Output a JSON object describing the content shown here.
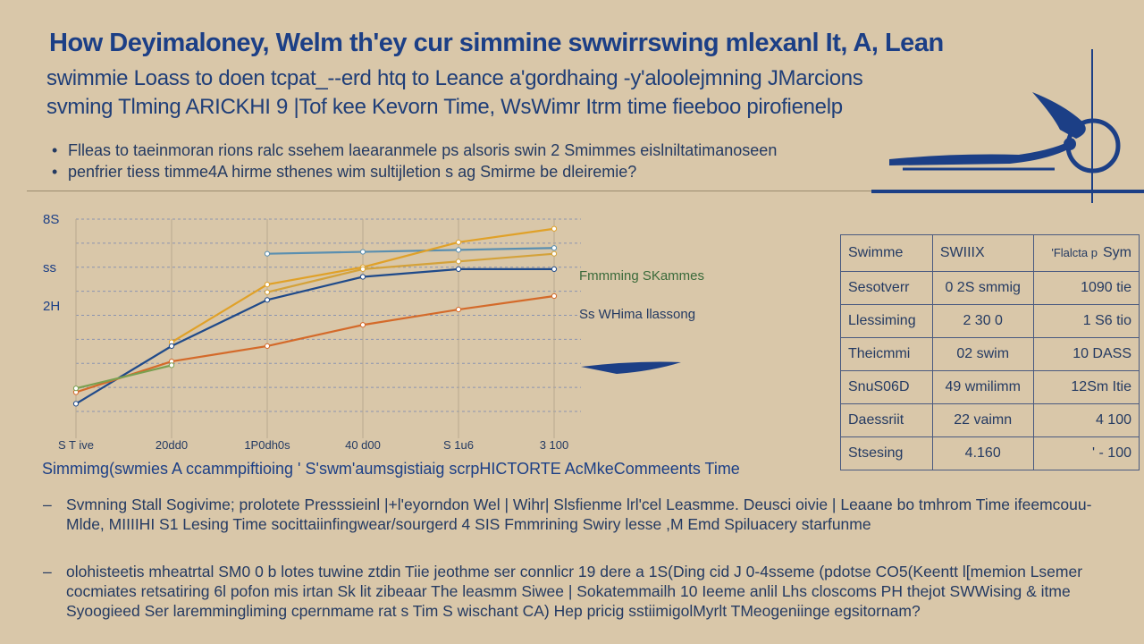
{
  "header": {
    "title": "How Deyimaloney, Welm th'ey cur simmine swwirrswing mlexanl It, A, Lean",
    "subtitle_1": "swimmie Loass to doen tcpat_--erd htq to Leance a'gordhaing -y'aloolejmning JMarcions",
    "subtitle_2": "svming Tlming ARICKHI 9 |Tof kee Kevorn Time, WsWimr Itrm time fieeboo pirofienelp"
  },
  "bullets": [
    "Flleas to taeinmoran rions ralc ssehem laearanmele ps alsoris swin 2 Smimmes eislniltatimanoseen",
    "penfrier tiess timme4A hirme sthenes wim sultijletion s ag Smirme be dleiremie?"
  ],
  "chart_data": {
    "type": "line",
    "title": "",
    "xlabel": "",
    "ylabel": "",
    "y_ticks": [
      "8S",
      "ss",
      "2H"
    ],
    "x_ticks": [
      "S T ive",
      "20dd0",
      "1P0dh0s",
      "40 d00",
      "S 1u6",
      "3 100"
    ],
    "x": [
      0,
      1,
      2,
      3,
      4,
      5
    ],
    "ylim": [
      0,
      100
    ],
    "series": [
      {
        "name": "",
        "color": "#5a8fb0",
        "values": [
          null,
          null,
          82,
          83,
          84,
          85
        ]
      },
      {
        "name": "",
        "color": "#e0a128",
        "values": [
          null,
          36,
          66,
          75,
          88,
          95
        ]
      },
      {
        "name": "",
        "color": "#d4a23a",
        "values": [
          null,
          null,
          62,
          74,
          78,
          82
        ]
      },
      {
        "name": "",
        "color": "#1f4a8a",
        "values": [
          4,
          34,
          58,
          70,
          74,
          74
        ]
      },
      {
        "name": "",
        "color": "#d46a2a",
        "values": [
          10,
          26,
          34,
          45,
          53,
          60
        ]
      },
      {
        "name": "",
        "color": "#7aa050",
        "values": [
          12,
          24,
          null,
          null,
          null,
          null
        ]
      }
    ],
    "labels": [
      "Fmmming SKammes",
      "Ss WHima llassong"
    ],
    "caption": "Simmimg(swmies A ccammpiftioing ' S'swm'aumsgistiaig scrpHICTORTE AcMkeCommeents Time"
  },
  "table": {
    "headers": [
      "Swimme",
      "SWIIIX",
      "Sym"
    ],
    "header_extra": "'Flalcta p",
    "rows": [
      [
        "Sesotverr",
        "0 2S smmig",
        "1090 tie"
      ],
      [
        "Llessiming",
        "2 30 0",
        "1 S6 tio"
      ],
      [
        "Theicmmi",
        "02 swim",
        "10 DASS"
      ],
      [
        "SnuS06D",
        "49 wmilimm",
        "12Sm Itie"
      ],
      [
        "Daessriit",
        "22 vaimn",
        "4 100"
      ],
      [
        "Stsesing",
        "4.160",
        "' - 100"
      ]
    ]
  },
  "notes": [
    "Svmning Stall Sogivime; prolotete Presssieinl |+l'eyorndon Wel | Wihr| Slsfienme lrl'cel Leasmme. Deusci oivie | Leaane bo tmhrom Time ifeemcouu- Mlde, MIIIIHI S1 Lesing Time socittaiinfingwear/sourgerd 4 SIS Fmmrining Swiry lesse ,M Emd Spiluacery starfunme",
    "olohisteetis mheatrtal SM0 0 b lotes tuwine ztdin Tiie jeothme ser connlicr 19 dere a 1S(Ding cid J 0-4sseme (pdotse CO5(Keentt l[memion Lsemer cocmiates retsatiring 6l pofon mis irtan Sk lit zibeaar The leasmm Siwee | Sokatemmailh 10 Ieeme anlil Lhs closcoms PH thejot SWWising & itme Syoogieed Ser laremmingliming cpernmame rat s Tim S wischant CA) Hep pricig sstiimigolMyrlt TMeogeniinge egsitornam?"
  ],
  "colors": {
    "accent": "#1c3f86",
    "background": "#d9c7a9"
  }
}
